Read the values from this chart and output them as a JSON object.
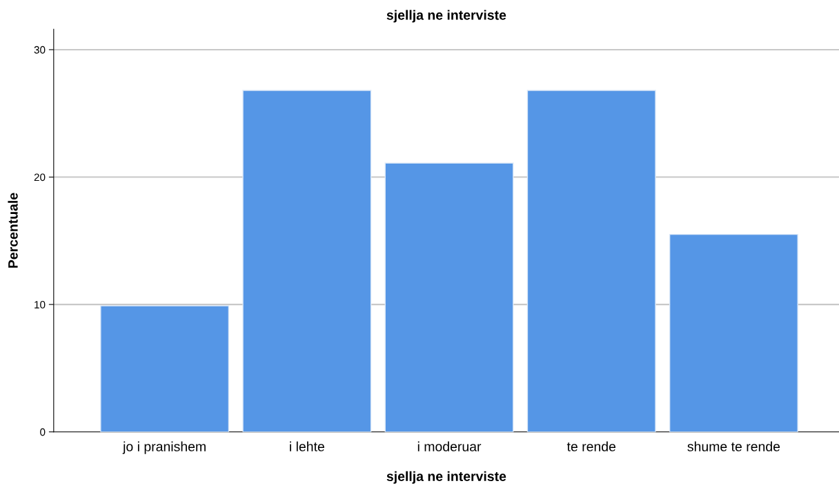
{
  "chart_data": {
    "type": "bar",
    "title": "sjellja ne interviste",
    "xlabel": "sjellja ne interviste",
    "ylabel": "Percentuale",
    "categories": [
      "jo i pranishem",
      "i lehte",
      "i moderuar",
      "te rende",
      "shume te rende"
    ],
    "values": [
      9.9,
      26.8,
      21.1,
      26.8,
      15.5
    ],
    "color": "#5596e6",
    "ylim": [
      0,
      31.6
    ],
    "yticks": [
      0,
      10,
      20,
      30
    ],
    "grid": "y",
    "legend": false
  }
}
